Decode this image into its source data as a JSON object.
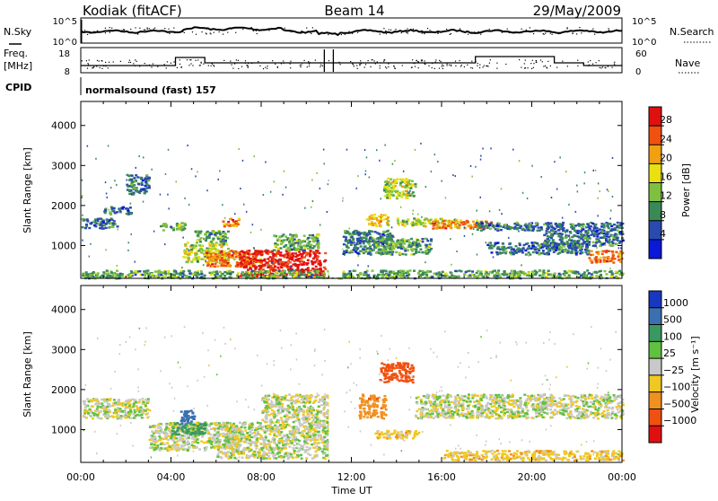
{
  "header": {
    "radar": "Kodiak (fitACF)",
    "beam": "Beam 14",
    "date": "29/May/2009"
  },
  "panels": {
    "nsky_label": "N.Sky",
    "nsky_ticks": [
      "10^5",
      "10^0"
    ],
    "nsearch_label": "N.Search",
    "nsearch_ticks": [
      "10^5",
      "10^0"
    ],
    "freq_label": "Freq.",
    "freq_unit": "[MHz]",
    "freq_ticks": [
      "18",
      "8"
    ],
    "nave_label": "Nave",
    "nave_ticks": [
      "60",
      "0"
    ],
    "cpid_label": "CPID",
    "cpid_value": "normalsound (fast) 157"
  },
  "chart_data": [
    {
      "type": "heatmap",
      "title": "",
      "xlabel": "Time UT",
      "ylabel": "Slant Range [km]",
      "x_ticks": [
        "00:00",
        "04:00",
        "08:00",
        "12:00",
        "16:00",
        "20:00",
        "00:00"
      ],
      "x_range_hours": [
        0,
        24
      ],
      "y_ticks": [
        1000,
        2000,
        3000,
        4000
      ],
      "ylim": [
        180,
        4600
      ],
      "colorbar": {
        "label": "Power [dB]",
        "ticks": [
          "28",
          "24",
          "20",
          "16",
          "12",
          "8",
          "4"
        ],
        "colors": [
          "#0a18d8",
          "#2a4ab0",
          "#3a8a58",
          "#80c040",
          "#e8e010",
          "#f0a010",
          "#f05010",
          "#e01010"
        ]
      },
      "regions": [
        {
          "t": [
            0.0,
            1.6
          ],
          "r": [
            1450,
            1700
          ],
          "value": 8
        },
        {
          "t": [
            1.0,
            2.2
          ],
          "r": [
            1800,
            2000
          ],
          "value": 8
        },
        {
          "t": [
            2.0,
            3.0
          ],
          "r": [
            2300,
            2800
          ],
          "value": 8
        },
        {
          "t": [
            3.5,
            4.6
          ],
          "r": [
            1400,
            1600
          ],
          "value": 12
        },
        {
          "t": [
            5.0,
            6.5
          ],
          "r": [
            1100,
            1400
          ],
          "value": 12
        },
        {
          "t": [
            6.2,
            7.0
          ],
          "r": [
            1500,
            1700
          ],
          "value": 24
        },
        {
          "t": [
            4.5,
            6.5
          ],
          "r": [
            600,
            1100
          ],
          "value": 16
        },
        {
          "t": [
            5.5,
            8.0
          ],
          "r": [
            500,
            900
          ],
          "value": 24
        },
        {
          "t": [
            7.0,
            10.8
          ],
          "r": [
            250,
            900
          ],
          "value": 30
        },
        {
          "t": [
            8.5,
            10.5
          ],
          "r": [
            900,
            1300
          ],
          "value": 12
        },
        {
          "t": [
            11.6,
            13.8
          ],
          "r": [
            800,
            1400
          ],
          "value": 8
        },
        {
          "t": [
            12.6,
            13.6
          ],
          "r": [
            1500,
            1800
          ],
          "value": 20
        },
        {
          "t": [
            13.4,
            14.8
          ],
          "r": [
            2200,
            2700
          ],
          "value": 16
        },
        {
          "t": [
            14.0,
            16.8
          ],
          "r": [
            1500,
            1700
          ],
          "value": 16
        },
        {
          "t": [
            15.5,
            18.3
          ],
          "r": [
            1450,
            1650
          ],
          "value": 24
        },
        {
          "t": [
            13.0,
            15.5
          ],
          "r": [
            800,
            1200
          ],
          "value": 12
        },
        {
          "t": [
            17.5,
            20.5
          ],
          "r": [
            1400,
            1600
          ],
          "value": 8
        },
        {
          "t": [
            18.0,
            22.5
          ],
          "r": [
            800,
            1100
          ],
          "value": 8
        },
        {
          "t": [
            20.5,
            24.0
          ],
          "r": [
            1000,
            1600
          ],
          "value": 8
        },
        {
          "t": [
            22.5,
            24.0
          ],
          "r": [
            600,
            900
          ],
          "value": 24
        },
        {
          "t": [
            0.0,
            24.0
          ],
          "r": [
            200,
            400
          ],
          "value": 12
        }
      ]
    },
    {
      "type": "heatmap",
      "title": "",
      "xlabel": "Time UT",
      "ylabel": "Slant Range [km]",
      "x_ticks": [
        "00:00",
        "04:00",
        "08:00",
        "12:00",
        "16:00",
        "20:00",
        "00:00"
      ],
      "x_range_hours": [
        0,
        24
      ],
      "y_ticks": [
        1000,
        2000,
        3000,
        4000
      ],
      "ylim": [
        180,
        4600
      ],
      "colorbar": {
        "label": "Velocity [m s⁻¹]",
        "ticks": [
          "1000",
          "500",
          "100",
          "25",
          "−25",
          "−100",
          "−500",
          "−1000"
        ],
        "colors": [
          "#1838c0",
          "#3a70b0",
          "#3a9860",
          "#60c040",
          "#c8c8c8",
          "#f0c820",
          "#f09020",
          "#f05010",
          "#e01010"
        ]
      },
      "regions": [
        {
          "t": [
            0.0,
            3.0
          ],
          "r": [
            1300,
            1800
          ],
          "value": 0
        },
        {
          "t": [
            3.0,
            7.0
          ],
          "r": [
            500,
            1200
          ],
          "value": 0
        },
        {
          "t": [
            4.4,
            5.0
          ],
          "r": [
            1100,
            1500
          ],
          "value": 600
        },
        {
          "t": [
            4.0,
            5.5
          ],
          "r": [
            900,
            1200
          ],
          "value": 150
        },
        {
          "t": [
            6.0,
            11.0
          ],
          "r": [
            300,
            1200
          ],
          "value": 0
        },
        {
          "t": [
            8.0,
            11.0
          ],
          "r": [
            1200,
            1900
          ],
          "value": 0
        },
        {
          "t": [
            12.3,
            13.5
          ],
          "r": [
            1300,
            1900
          ],
          "value": -450
        },
        {
          "t": [
            13.2,
            14.7
          ],
          "r": [
            2200,
            2700
          ],
          "value": -600
        },
        {
          "t": [
            14.8,
            24.0
          ],
          "r": [
            1300,
            1900
          ],
          "value": 0
        },
        {
          "t": [
            13.0,
            15.0
          ],
          "r": [
            800,
            1000
          ],
          "value": -60
        },
        {
          "t": [
            16.0,
            24.0
          ],
          "r": [
            250,
            500
          ],
          "value": -60
        }
      ]
    }
  ]
}
